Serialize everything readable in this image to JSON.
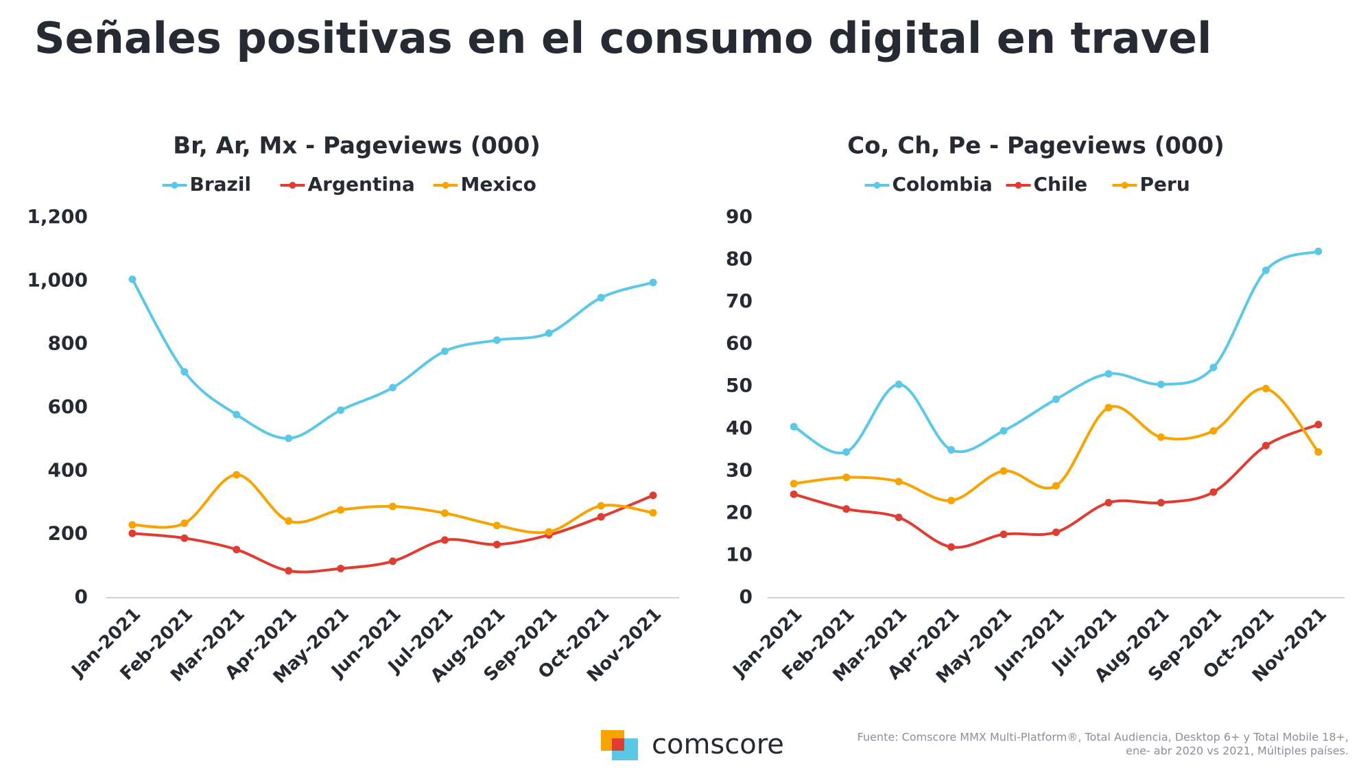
{
  "page_title": "Señales positivas en el consumo digital en travel",
  "chart_data": [
    {
      "type": "line",
      "title": "Br, Ar, Mx - Pageviews (000)",
      "categories": [
        "Jan-2021",
        "Feb-2021",
        "Mar-2021",
        "Apr-2021",
        "May-2021",
        "Jun-2021",
        "Jul-2021",
        "Aug-2021",
        "Sep-2021",
        "Oct-2021",
        "Nov-2021"
      ],
      "series": [
        {
          "name": "Brazil",
          "color": "#5bc8e8",
          "values": [
            1005,
            713,
            578,
            503,
            592,
            663,
            778,
            813,
            835,
            947,
            995
          ]
        },
        {
          "name": "Argentina",
          "color": "#e03c31",
          "values": [
            203,
            188,
            152,
            85,
            92,
            115,
            182,
            168,
            198,
            255,
            323
          ]
        },
        {
          "name": "Mexico",
          "color": "#f7a400",
          "values": [
            230,
            235,
            388,
            242,
            277,
            288,
            267,
            228,
            208,
            290,
            268
          ]
        }
      ],
      "ylim": [
        0,
        1200
      ],
      "yticks": [
        0,
        200,
        400,
        600,
        800,
        {
          "value": 1000,
          "label": "1,000"
        },
        {
          "value": 1200,
          "label": "1,200"
        }
      ],
      "smooth": true,
      "legend": "top"
    },
    {
      "type": "line",
      "title": "Co, Ch, Pe - Pageviews (000)",
      "categories": [
        "Jan-2021",
        "Feb-2021",
        "Mar-2021",
        "Apr-2021",
        "May-2021",
        "Jun-2021",
        "Jul-2021",
        "Aug-2021",
        "Sep-2021",
        "Oct-2021",
        "Nov-2021"
      ],
      "series": [
        {
          "name": "Colombia",
          "color": "#5bc8e8",
          "values": [
            40.5,
            34.5,
            50.5,
            35,
            39.5,
            47,
            53,
            50.5,
            54.5,
            77.5,
            82
          ]
        },
        {
          "name": "Chile",
          "color": "#e03c31",
          "values": [
            24.5,
            21,
            19,
            12,
            15,
            15.5,
            22.5,
            22.5,
            25,
            36,
            41
          ]
        },
        {
          "name": "Peru",
          "color": "#f7a400",
          "values": [
            27,
            28.5,
            27.5,
            23,
            30,
            26.5,
            45,
            38,
            39.5,
            49.5,
            34.5
          ]
        }
      ],
      "ylim": [
        0,
        90
      ],
      "yticks": [
        0,
        10,
        20,
        30,
        40,
        50,
        60,
        70,
        80,
        90
      ],
      "smooth": true,
      "legend": "top"
    }
  ],
  "footer": {
    "brand": "comscore",
    "source": [
      "Fuente: Comscore MMX Multi-Platform®, Total Audiencia, Desktop 6+ y Total Mobile 18+,",
      "ene- abr 2020 vs  2021, Múltiples países."
    ]
  }
}
